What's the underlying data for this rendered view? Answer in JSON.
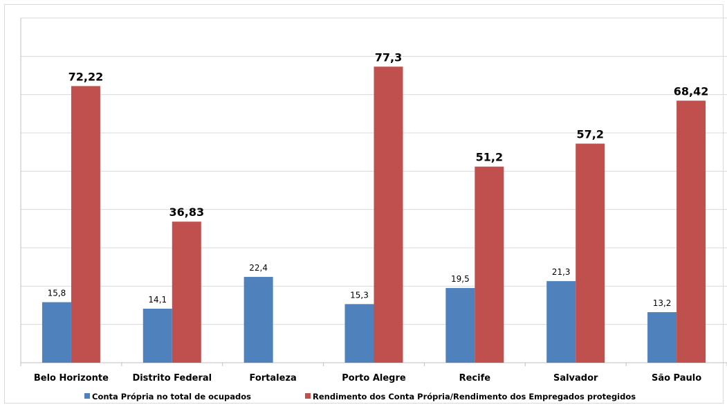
{
  "chart_data": {
    "type": "bar",
    "categories": [
      "Belo Horizonte",
      "Distrito Federal",
      "Fortaleza",
      "Porto Alegre",
      "Recife",
      "Salvador",
      "São Paulo"
    ],
    "series": [
      {
        "name": "Conta Própria no total de ocupados",
        "color": "#4f81bd",
        "values": [
          15.8,
          14.1,
          22.4,
          15.3,
          19.5,
          21.3,
          13.2
        ],
        "labels": [
          "15,8",
          "14,1",
          "22,4",
          "15,3",
          "19,5",
          "21,3",
          "13,2"
        ]
      },
      {
        "name": "Rendimento dos Conta Própria/Rendimento dos Empregados protegidos",
        "color": "#c0504d",
        "values": [
          72.22,
          36.83,
          null,
          77.3,
          51.2,
          57.2,
          68.42
        ],
        "labels": [
          "72,22",
          "36,83",
          "",
          "77,3",
          "51,2",
          "57,2",
          "68,42"
        ]
      }
    ],
    "ylim": [
      0,
      90
    ],
    "grid": true,
    "legend_position": "bottom"
  }
}
